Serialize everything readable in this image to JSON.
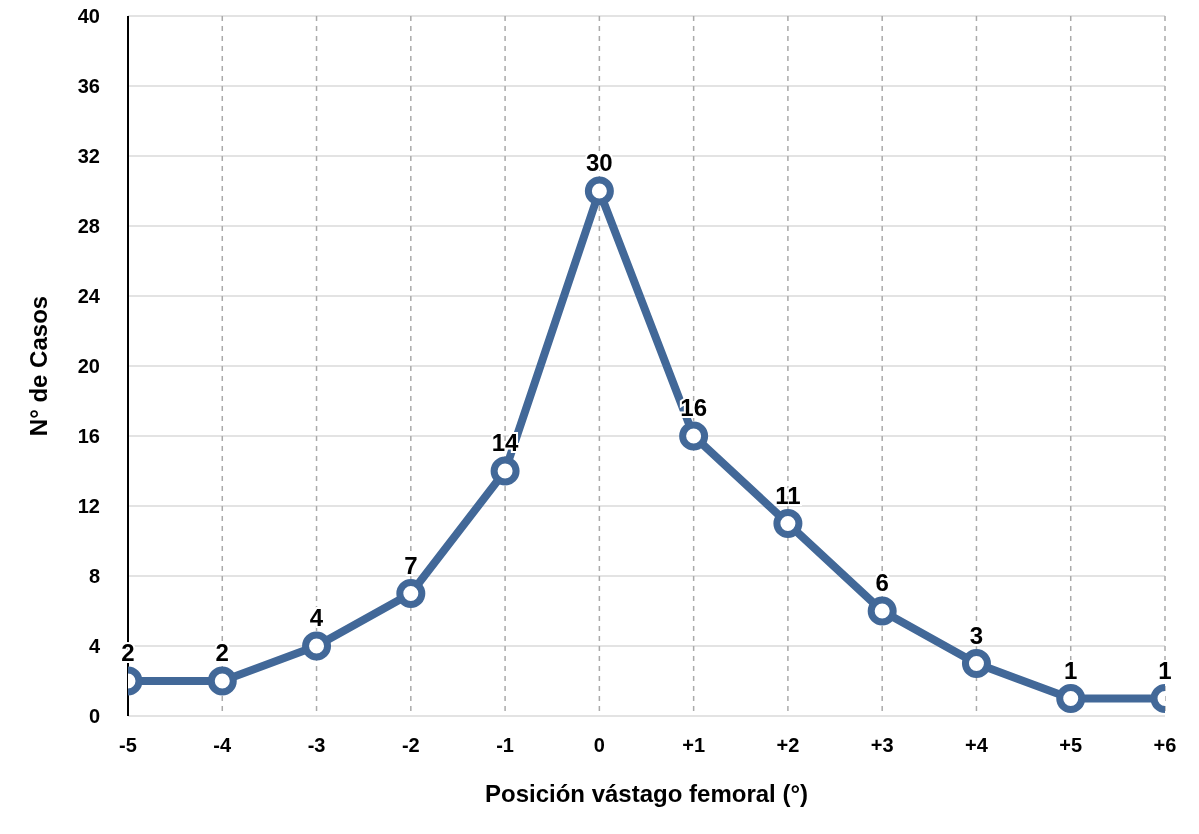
{
  "chart_data": {
    "type": "line",
    "xlabel": "Posición vástago femoral (°)",
    "ylabel": "N° de Casos",
    "categories": [
      "-5",
      "-4",
      "-3",
      "-2",
      "-1",
      "0",
      "+1",
      "+2",
      "+3",
      "+4",
      "+5",
      "+6"
    ],
    "series": [
      {
        "color": "#426898",
        "values": [
          2,
          2,
          4,
          7,
          14,
          30,
          16,
          11,
          6,
          3,
          1,
          1
        ]
      }
    ],
    "ylim": [
      0,
      40
    ],
    "yticks": [
      0,
      4,
      8,
      12,
      16,
      20,
      24,
      28,
      32,
      36,
      40
    ],
    "grid": true,
    "marker": "circle",
    "line_style": "solid",
    "data_labels": true
  }
}
